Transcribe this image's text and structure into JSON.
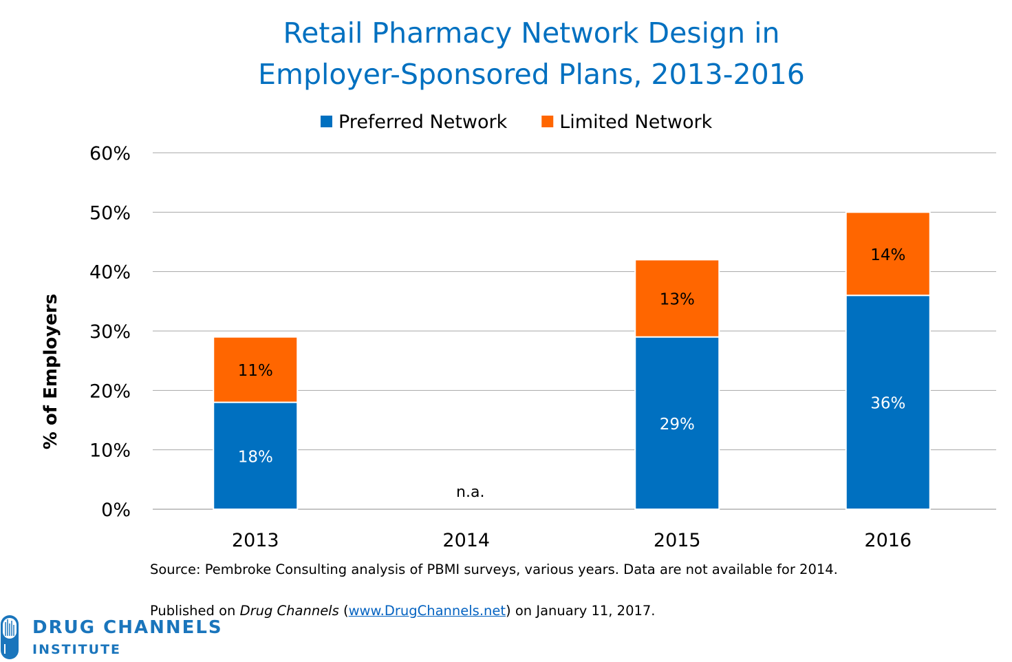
{
  "chart_data": {
    "type": "bar",
    "stacked": true,
    "title": [
      "Retail Pharmacy Network Design in",
      "Employer-Sponsored Plans, 2013-2016"
    ],
    "ylabel": "% of Employers",
    "xlabel": "",
    "ylim": [
      0,
      60
    ],
    "yticks": [
      "0%",
      "10%",
      "20%",
      "30%",
      "40%",
      "50%",
      "60%"
    ],
    "grid": true,
    "legend_position": "top",
    "categories": [
      "2013",
      "2014",
      "2015",
      "2016"
    ],
    "series": [
      {
        "name": "Preferred Network",
        "color": "#0070c0",
        "values": [
          18,
          null,
          29,
          36
        ],
        "labels": [
          "18%",
          "",
          "29%",
          "36%"
        ]
      },
      {
        "name": "Limited Network",
        "color": "#ff6600",
        "values": [
          11,
          null,
          13,
          14
        ],
        "labels": [
          "11%",
          "",
          "13%",
          "14%"
        ]
      }
    ],
    "annotations": [
      {
        "category": "2014",
        "text": "n.a."
      }
    ]
  },
  "source": "Source: Pembroke Consulting analysis of PBMI surveys, various years. Data are not available for 2014.",
  "published": {
    "prefix": "Published on ",
    "publication": "Drug Channels",
    "open": " (",
    "link": "www.DrugChannels.net",
    "suffix": ") on January 11, 2017."
  },
  "logo": {
    "line1": "DRUG CHANNELS",
    "line2": "INSTITUTE",
    "color": "#1a75bc"
  }
}
